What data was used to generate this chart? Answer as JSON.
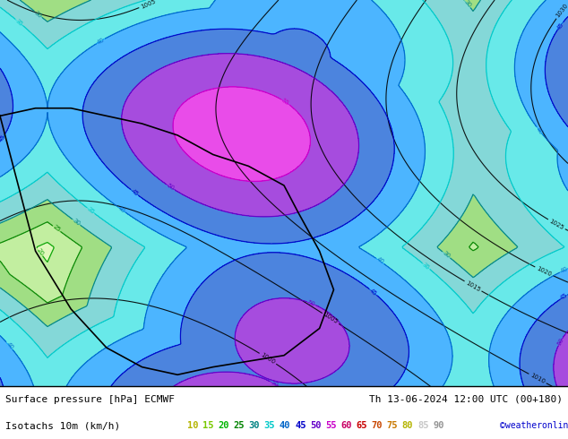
{
  "title_left": "Surface pressure [hPa] ECMWF",
  "title_right": "Th 13-06-2024 12:00 UTC (00+180)",
  "subtitle_left": "Isotachs 10m (km/h)",
  "copyright": "©weatheronline.co.uk",
  "bg_color": "#ffffff",
  "map_bg_color": "#e8f4e8",
  "isotach_values": [
    10,
    15,
    20,
    25,
    30,
    35,
    40,
    45,
    50,
    55,
    60,
    65,
    70,
    75,
    80,
    85,
    90
  ],
  "isotach_colors": [
    "#ffff00",
    "#c8ff00",
    "#00ff00",
    "#00c800",
    "#00c8c8",
    "#00ffff",
    "#0096ff",
    "#0000ff",
    "#9600ff",
    "#ff00ff",
    "#ff0096",
    "#ff0000",
    "#ff6400",
    "#ffa000",
    "#ffff00",
    "#ffffff",
    "#c8c8c8"
  ],
  "legend_colors_hex": [
    "#b4b400",
    "#78b400",
    "#00b400",
    "#008200",
    "#008282",
    "#00c8c8",
    "#0064c8",
    "#0000c8",
    "#6400c8",
    "#c800c8",
    "#c80064",
    "#c80000",
    "#c84600",
    "#c87800",
    "#b4b400",
    "#c8c8c8",
    "#969696"
  ],
  "figsize": [
    6.34,
    4.9
  ],
  "dpi": 100
}
